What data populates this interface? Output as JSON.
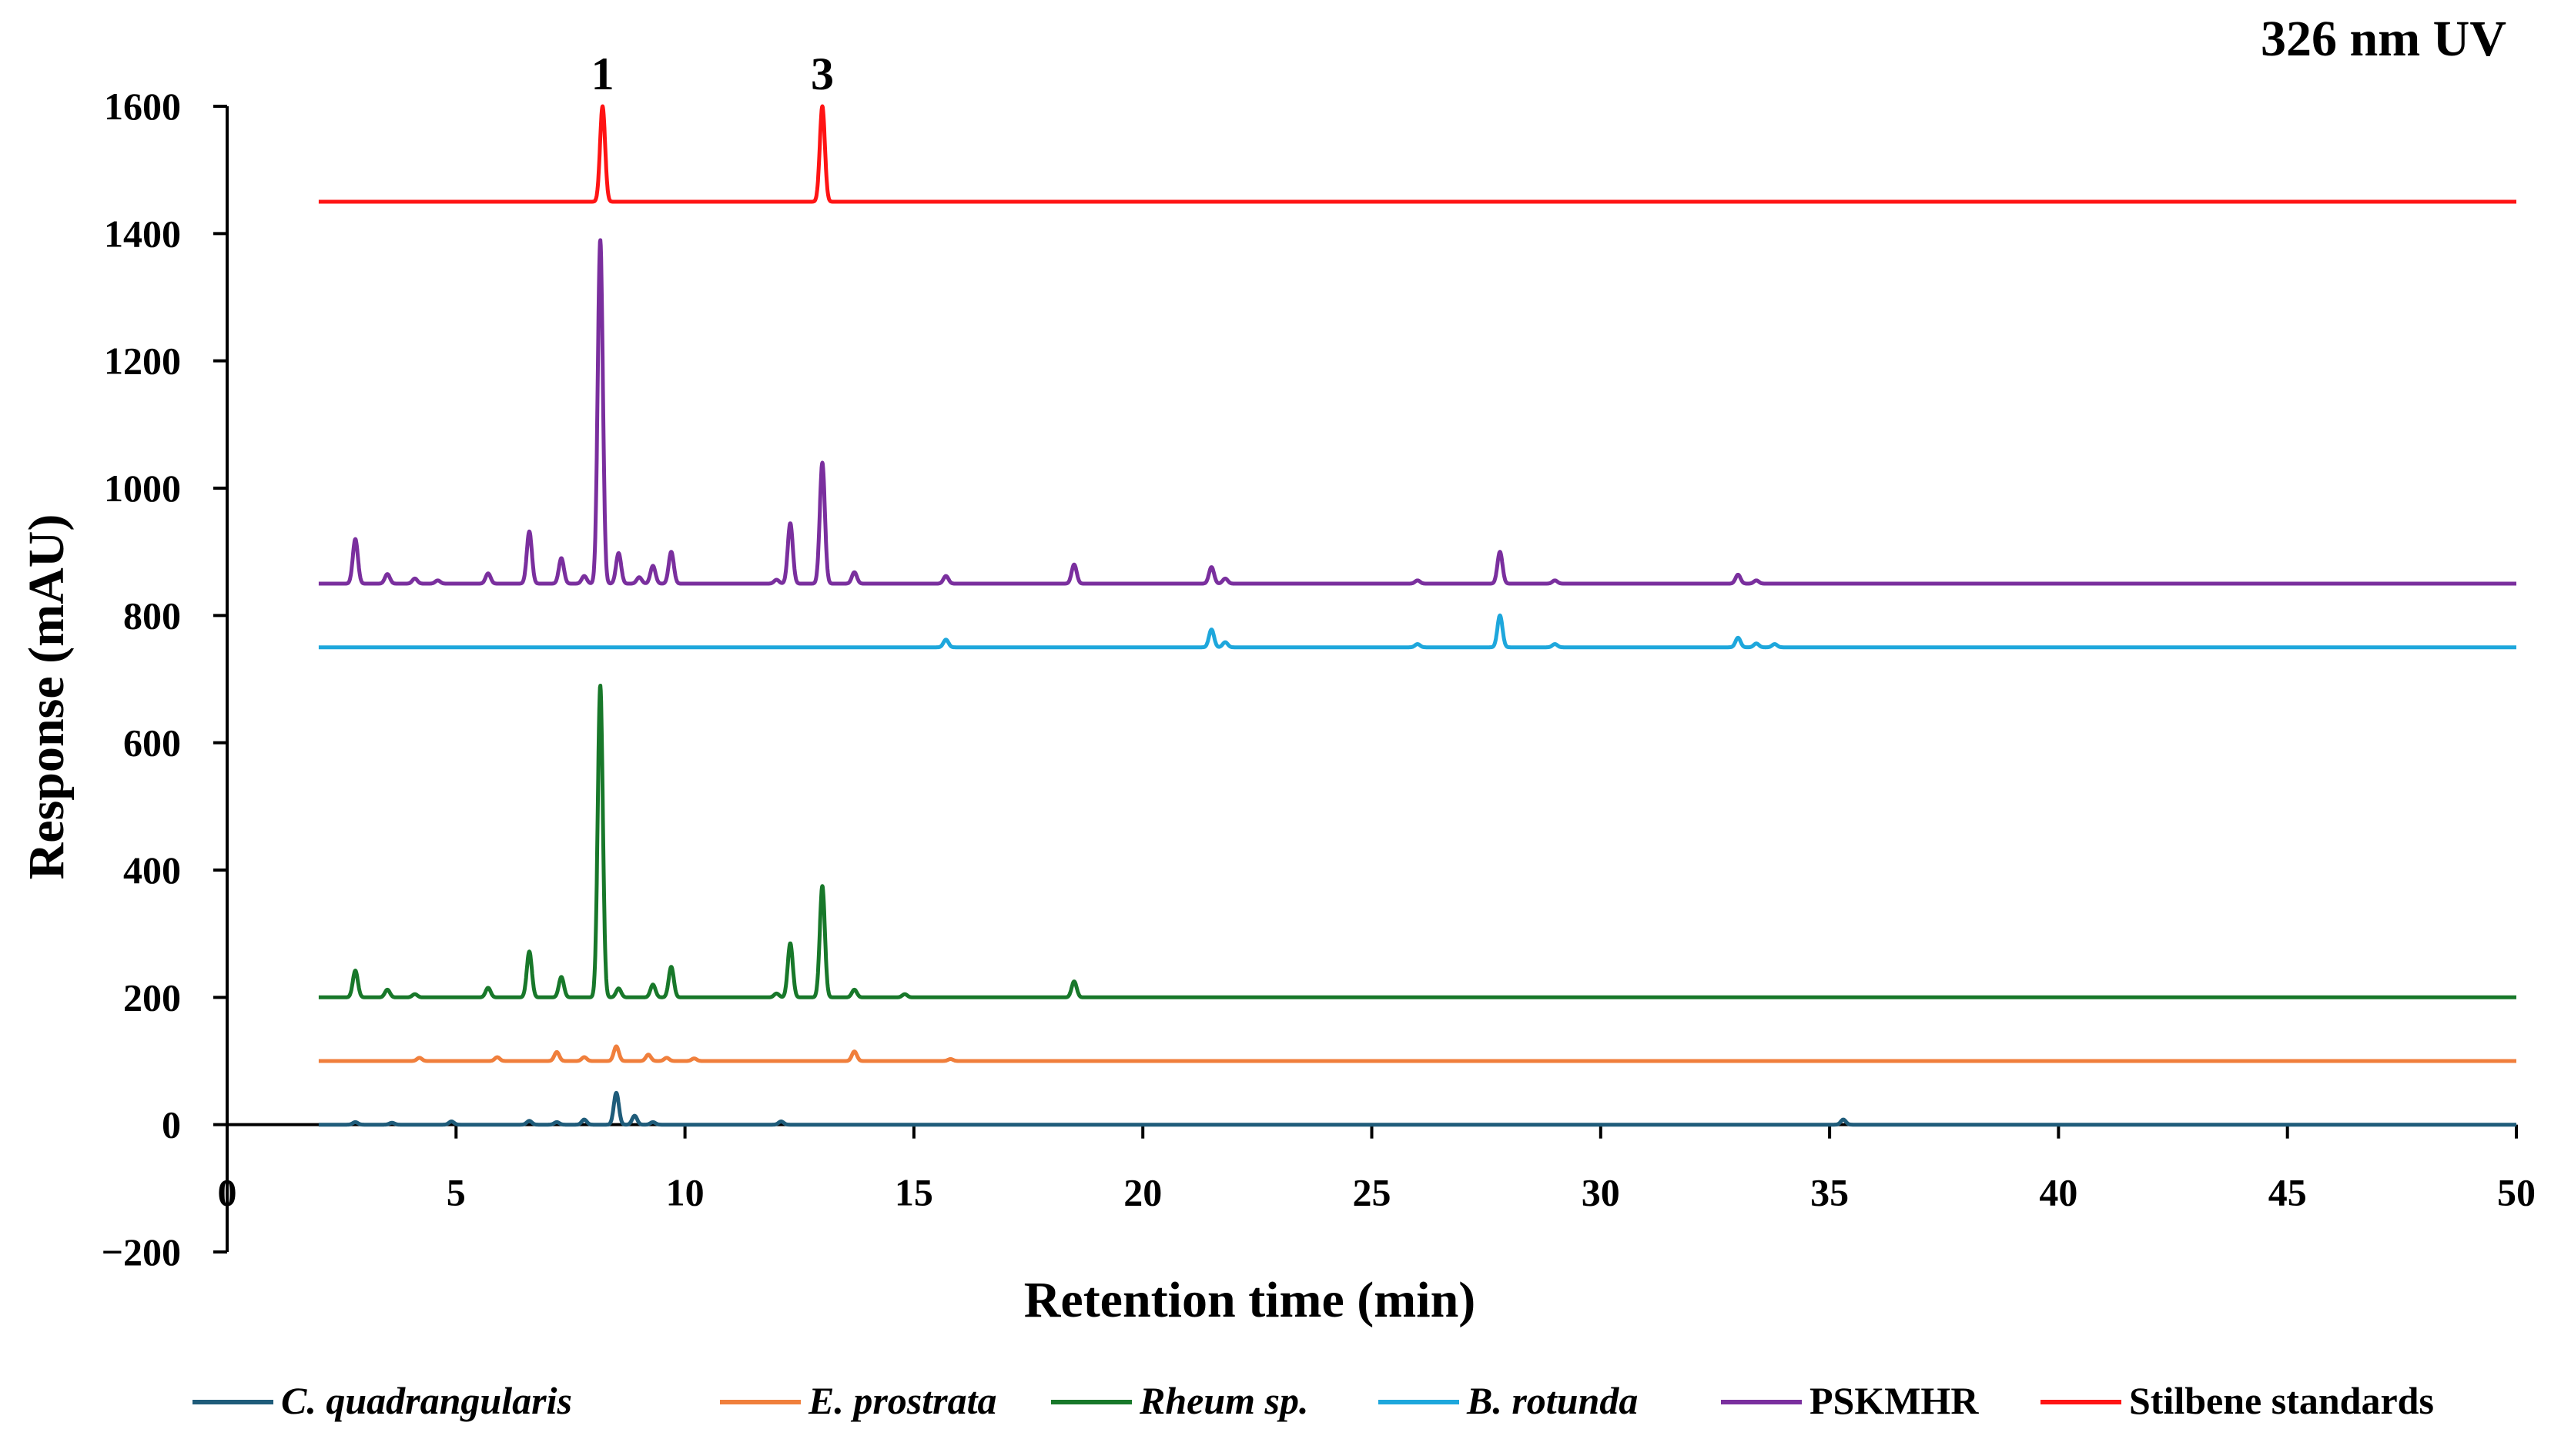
{
  "chart_data": {
    "type": "line",
    "title": "326 nm UV",
    "xlabel": "Retention  time (min)",
    "ylabel": "Response (mAU)",
    "xlim": [
      0,
      50
    ],
    "ylim": [
      -200,
      1600
    ],
    "x_ticks": [
      0,
      5,
      10,
      15,
      20,
      25,
      30,
      35,
      40,
      45,
      50
    ],
    "y_ticks": [
      -200,
      0,
      200,
      400,
      600,
      800,
      1000,
      1200,
      1400,
      1600
    ],
    "y_tick_labels": [
      "−200",
      "0",
      "200",
      "400",
      "600",
      "800",
      "1000",
      "1200",
      "1400",
      "1600"
    ],
    "x_range_plotted": [
      2.0,
      50.0
    ],
    "annotations": [
      {
        "text": "1",
        "x": 8.2,
        "y": 1600
      },
      {
        "text": "3",
        "x": 13.0,
        "y": 1600
      }
    ],
    "series": [
      {
        "name": "C. quadrangularis",
        "italic": true,
        "color": "#1f5c7a",
        "baseline": 0,
        "peaks": [
          [
            2.8,
            4
          ],
          [
            3.6,
            3
          ],
          [
            4.9,
            5
          ],
          [
            6.6,
            6
          ],
          [
            7.2,
            4
          ],
          [
            7.8,
            8
          ],
          [
            8.5,
            50
          ],
          [
            8.9,
            14
          ],
          [
            9.3,
            4
          ],
          [
            12.1,
            5
          ],
          [
            35.3,
            8
          ]
        ]
      },
      {
        "name": "E. prostrata",
        "italic": true,
        "color": "#f07f3c",
        "baseline": 100,
        "peaks": [
          [
            4.2,
            5
          ],
          [
            5.9,
            6
          ],
          [
            7.2,
            14
          ],
          [
            7.8,
            6
          ],
          [
            8.5,
            23
          ],
          [
            9.2,
            10
          ],
          [
            9.6,
            5
          ],
          [
            10.2,
            4
          ],
          [
            13.7,
            15
          ],
          [
            15.8,
            3
          ]
        ]
      },
      {
        "name": "Rheum sp.",
        "italic": true,
        "color": "#18782a",
        "baseline": 200,
        "peaks": [
          [
            2.8,
            42
          ],
          [
            3.5,
            12
          ],
          [
            4.1,
            5
          ],
          [
            5.7,
            15
          ],
          [
            6.6,
            72
          ],
          [
            7.3,
            32
          ],
          [
            8.15,
            490
          ],
          [
            8.55,
            14
          ],
          [
            9.3,
            20
          ],
          [
            9.7,
            48
          ],
          [
            12.3,
            85
          ],
          [
            12.0,
            6
          ],
          [
            13.0,
            175
          ],
          [
            13.7,
            12
          ],
          [
            14.8,
            5
          ],
          [
            18.5,
            25
          ]
        ]
      },
      {
        "name": "B. rotunda",
        "italic": true,
        "color": "#1ea7dc",
        "baseline": 750,
        "peaks": [
          [
            15.7,
            12
          ],
          [
            21.5,
            28
          ],
          [
            21.8,
            8
          ],
          [
            26.0,
            5
          ],
          [
            27.8,
            50
          ],
          [
            29.0,
            5
          ],
          [
            33.0,
            15
          ],
          [
            33.4,
            6
          ],
          [
            33.8,
            5
          ]
        ]
      },
      {
        "name": "PSKMHR",
        "italic": false,
        "color": "#7a2f9e",
        "baseline": 850,
        "peaks": [
          [
            2.8,
            70
          ],
          [
            3.5,
            15
          ],
          [
            4.1,
            8
          ],
          [
            4.6,
            5
          ],
          [
            5.7,
            16
          ],
          [
            6.6,
            82
          ],
          [
            7.3,
            40
          ],
          [
            7.8,
            12
          ],
          [
            8.15,
            540
          ],
          [
            8.55,
            48
          ],
          [
            9.0,
            10
          ],
          [
            9.3,
            28
          ],
          [
            9.7,
            50
          ],
          [
            12.0,
            6
          ],
          [
            12.3,
            95
          ],
          [
            13.0,
            190
          ],
          [
            13.7,
            18
          ],
          [
            15.7,
            12
          ],
          [
            18.5,
            30
          ],
          [
            21.5,
            26
          ],
          [
            21.8,
            8
          ],
          [
            26.0,
            5
          ],
          [
            27.8,
            50
          ],
          [
            29.0,
            5
          ],
          [
            33.0,
            14
          ],
          [
            33.4,
            5
          ]
        ]
      },
      {
        "name": "Stilbene standards",
        "italic": false,
        "color": "#ff1414",
        "baseline": 1450,
        "peaks": [
          [
            8.2,
            150
          ],
          [
            13.0,
            150
          ]
        ]
      }
    ],
    "legend_position": "bottom"
  }
}
